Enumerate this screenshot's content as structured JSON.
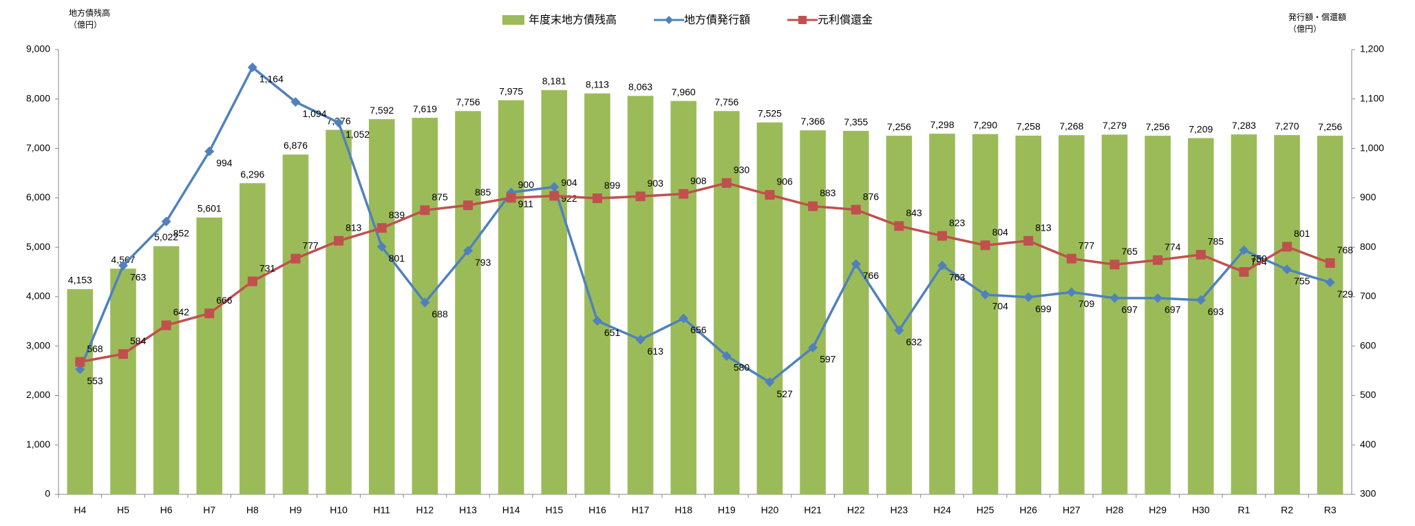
{
  "chart_data": {
    "type": "bar-line",
    "y_label": "地方債残高",
    "y_unit": "（億円）",
    "y2_label": "発行額・償還額",
    "y2_unit": "（億円）",
    "categories": [
      "H4",
      "H5",
      "H6",
      "H7",
      "H8",
      "H9",
      "H10",
      "H11",
      "H12",
      "H13",
      "H14",
      "H15",
      "H16",
      "H17",
      "H18",
      "H19",
      "H20",
      "H21",
      "H22",
      "H23",
      "H24",
      "H25",
      "H26",
      "H27",
      "H28",
      "H29",
      "H30",
      "R1",
      "R2",
      "R3"
    ],
    "ylim": [
      0,
      9000
    ],
    "yticks": [
      0,
      {
        "value": 1000,
        "label": "1,000"
      },
      {
        "value": 2000,
        "label": "2,000"
      },
      {
        "value": 3000,
        "label": "3,000"
      },
      {
        "value": 4000,
        "label": "4,000"
      },
      {
        "value": 5000,
        "label": "5,000"
      },
      {
        "value": 6000,
        "label": "6,000"
      },
      {
        "value": 7000,
        "label": "7,000"
      },
      {
        "value": 8000,
        "label": "8,000"
      },
      {
        "value": 9000,
        "label": "9,000"
      }
    ],
    "y2lim": [
      300,
      1200
    ],
    "y2ticks": [
      300,
      400,
      500,
      600,
      700,
      800,
      900,
      {
        "value": 1000,
        "label": "1,000"
      },
      {
        "value": 1100,
        "label": "1,100"
      },
      {
        "value": 1200,
        "label": "1,200"
      }
    ],
    "series": [
      {
        "name": "年度末地方債残高",
        "type": "bar",
        "color": "#9bbb59",
        "values": [
          4153,
          4567,
          5022,
          5601,
          6296,
          6876,
          7376,
          7592,
          7619,
          7756,
          7975,
          8181,
          8113,
          8063,
          7960,
          7756,
          7525,
          7366,
          7355,
          7256,
          7298,
          7290,
          7258,
          7268,
          7279,
          7256,
          7209,
          7283,
          7270,
          7256
        ],
        "value_labels": [
          "4,153",
          "4,567",
          "5,022",
          "5,601",
          "6,296",
          "6,876",
          "7,376",
          "7,592",
          "7,619",
          "7,756",
          "7,975",
          "8,181",
          "8,113",
          "8,063",
          "7,960",
          "7,756",
          "7,525",
          "7,366",
          "7,355",
          "7,256",
          "7,298",
          "7,290",
          "7,258",
          "7,268",
          "7,279",
          "7,256",
          "7,209",
          "7,283",
          "7,270",
          "7,256"
        ]
      },
      {
        "name": "地方債発行額",
        "type": "line",
        "marker": "diamond",
        "axis": "y2",
        "color": "#4f81bd",
        "values": [
          553,
          763,
          852,
          994,
          1164,
          1094,
          1052,
          801,
          688,
          793,
          911,
          922,
          651,
          613,
          656,
          580,
          527,
          597,
          766,
          632,
          763,
          704,
          699,
          709,
          697,
          697,
          693,
          794,
          755,
          729
        ],
        "value_labels": [
          "553",
          "763",
          "852",
          "994",
          "1,164",
          "1,094",
          "1,052",
          "801",
          "688",
          "793",
          "911",
          "922",
          "651",
          "613",
          "656",
          "580",
          "527",
          "597",
          "766",
          "632",
          "763",
          "704",
          "699",
          "709",
          "697",
          "697",
          "693",
          "794",
          "755",
          "729"
        ]
      },
      {
        "name": "元利償還金",
        "type": "line",
        "marker": "square",
        "axis": "y2",
        "color": "#c0504d",
        "values": [
          568,
          584,
          642,
          666,
          731,
          777,
          813,
          839,
          875,
          885,
          900,
          904,
          899,
          903,
          908,
          930,
          906,
          883,
          876,
          843,
          823,
          804,
          813,
          777,
          765,
          774,
          785,
          750,
          801,
          768
        ]
      }
    ]
  }
}
